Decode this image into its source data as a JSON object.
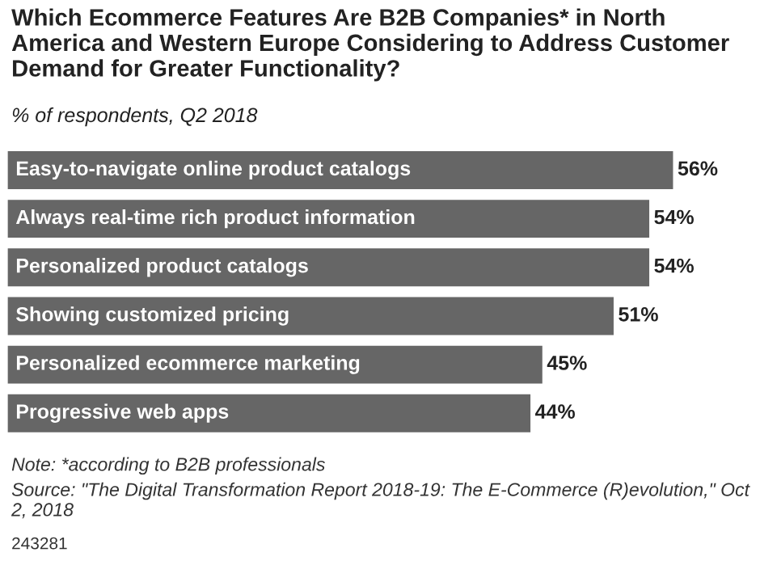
{
  "chart_data": {
    "type": "bar",
    "orientation": "horizontal",
    "title": "Which Ecommerce Features Are B2B Companies* in North America and Western Europe Considering to Address Customer Demand for Greater Functionality?",
    "subtitle": "% of respondents, Q2 2018",
    "categories": [
      "Easy-to-navigate online product catalogs",
      "Always real-time rich product information",
      "Personalized product catalogs",
      "Showing customized pricing",
      "Personalized ecommerce marketing",
      "Progressive web apps"
    ],
    "values": [
      56,
      54,
      54,
      51,
      45,
      44
    ],
    "value_labels": [
      "56%",
      "54%",
      "54%",
      "51%",
      "45%",
      "44%"
    ],
    "color": "#666666",
    "annotations": [
      "Note: *according to B2B professionals",
      "Source: \"The Digital Transformation Report 2018-19: The E-Commerce (R)evolution,\" Oct 2, 2018",
      "243281"
    ]
  }
}
